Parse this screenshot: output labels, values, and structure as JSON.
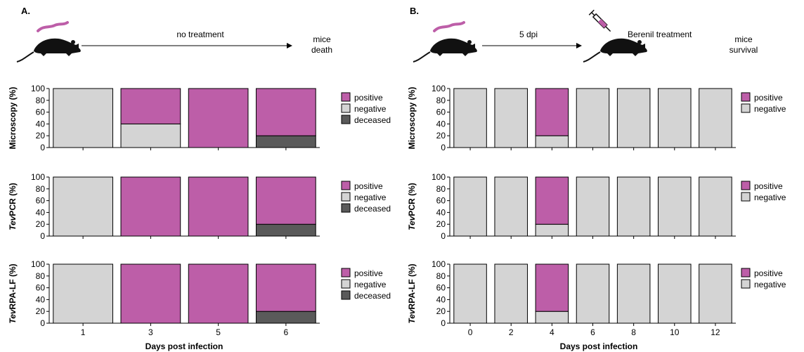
{
  "panelA": {
    "label": "A.",
    "schema": {
      "arrow_text": "no treatment",
      "end_line1": "mice",
      "end_line2": "death"
    },
    "xlabel": "Days post infection",
    "legend": [
      "positive",
      "negative",
      "deceased"
    ]
  },
  "panelB": {
    "label": "B.",
    "schema": {
      "arrow_text": "5 dpi",
      "mid_text": "Berenil treatment",
      "end_line1": "mice",
      "end_line2": "survival"
    },
    "xlabel": "Days post infection",
    "legend": [
      "positive",
      "negative"
    ]
  },
  "colors": {
    "positive": "#bd5ea8",
    "negative": "#d4d4d4",
    "deceased": "#5a5a5a",
    "mouse": "#111111",
    "parasite": "#bd5ea8"
  },
  "icons": [
    "mouse-icon",
    "parasite-icon",
    "syringe-icon"
  ],
  "chart_data": [
    {
      "panel": "A",
      "type": "bar",
      "stacked": true,
      "ylabel_prefix": "",
      "ylabel_suffix": "Microscopy (%)",
      "categories": [
        "1",
        "3",
        "5",
        "6"
      ],
      "ylim": [
        0,
        100
      ],
      "yticks": [
        0,
        20,
        40,
        60,
        80,
        100
      ],
      "series": [
        {
          "name": "deceased",
          "values": [
            0,
            0,
            0,
            20
          ]
        },
        {
          "name": "negative",
          "values": [
            100,
            40,
            0,
            0
          ]
        },
        {
          "name": "positive",
          "values": [
            0,
            60,
            100,
            80
          ]
        }
      ]
    },
    {
      "panel": "A",
      "type": "bar",
      "stacked": true,
      "ylabel_prefix": "Tev",
      "ylabel_suffix": "PCR (%)",
      "categories": [
        "1",
        "3",
        "5",
        "6"
      ],
      "ylim": [
        0,
        100
      ],
      "yticks": [
        0,
        20,
        40,
        60,
        80,
        100
      ],
      "series": [
        {
          "name": "deceased",
          "values": [
            0,
            0,
            0,
            20
          ]
        },
        {
          "name": "negative",
          "values": [
            100,
            0,
            0,
            0
          ]
        },
        {
          "name": "positive",
          "values": [
            0,
            100,
            100,
            80
          ]
        }
      ]
    },
    {
      "panel": "A",
      "type": "bar",
      "stacked": true,
      "ylabel_prefix": "Tev",
      "ylabel_suffix": "RPA-LF (%)",
      "categories": [
        "1",
        "3",
        "5",
        "6"
      ],
      "ylim": [
        0,
        100
      ],
      "yticks": [
        0,
        20,
        40,
        60,
        80,
        100
      ],
      "series": [
        {
          "name": "deceased",
          "values": [
            0,
            0,
            0,
            20
          ]
        },
        {
          "name": "negative",
          "values": [
            100,
            0,
            0,
            0
          ]
        },
        {
          "name": "positive",
          "values": [
            0,
            100,
            100,
            80
          ]
        }
      ]
    },
    {
      "panel": "B",
      "type": "bar",
      "stacked": true,
      "ylabel_prefix": "",
      "ylabel_suffix": "Microscopy (%)",
      "categories": [
        "0",
        "2",
        "4",
        "6",
        "8",
        "10",
        "12"
      ],
      "ylim": [
        0,
        100
      ],
      "yticks": [
        0,
        20,
        40,
        60,
        80,
        100
      ],
      "series": [
        {
          "name": "negative",
          "values": [
            100,
            100,
            20,
            100,
            100,
            100,
            100
          ]
        },
        {
          "name": "positive",
          "values": [
            0,
            0,
            80,
            0,
            0,
            0,
            0
          ]
        }
      ]
    },
    {
      "panel": "B",
      "type": "bar",
      "stacked": true,
      "ylabel_prefix": "Tev",
      "ylabel_suffix": "PCR (%)",
      "categories": [
        "0",
        "2",
        "4",
        "6",
        "8",
        "10",
        "12"
      ],
      "ylim": [
        0,
        100
      ],
      "yticks": [
        0,
        20,
        40,
        60,
        80,
        100
      ],
      "series": [
        {
          "name": "negative",
          "values": [
            100,
            100,
            20,
            100,
            100,
            100,
            100
          ]
        },
        {
          "name": "positive",
          "values": [
            0,
            0,
            80,
            0,
            0,
            0,
            0
          ]
        }
      ]
    },
    {
      "panel": "B",
      "type": "bar",
      "stacked": true,
      "ylabel_prefix": "Tev",
      "ylabel_suffix": "RPA-LF (%)",
      "categories": [
        "0",
        "2",
        "4",
        "6",
        "8",
        "10",
        "12"
      ],
      "ylim": [
        0,
        100
      ],
      "yticks": [
        0,
        20,
        40,
        60,
        80,
        100
      ],
      "series": [
        {
          "name": "negative",
          "values": [
            100,
            100,
            20,
            100,
            100,
            100,
            100
          ]
        },
        {
          "name": "positive",
          "values": [
            0,
            0,
            80,
            0,
            0,
            0,
            0
          ]
        }
      ]
    }
  ]
}
